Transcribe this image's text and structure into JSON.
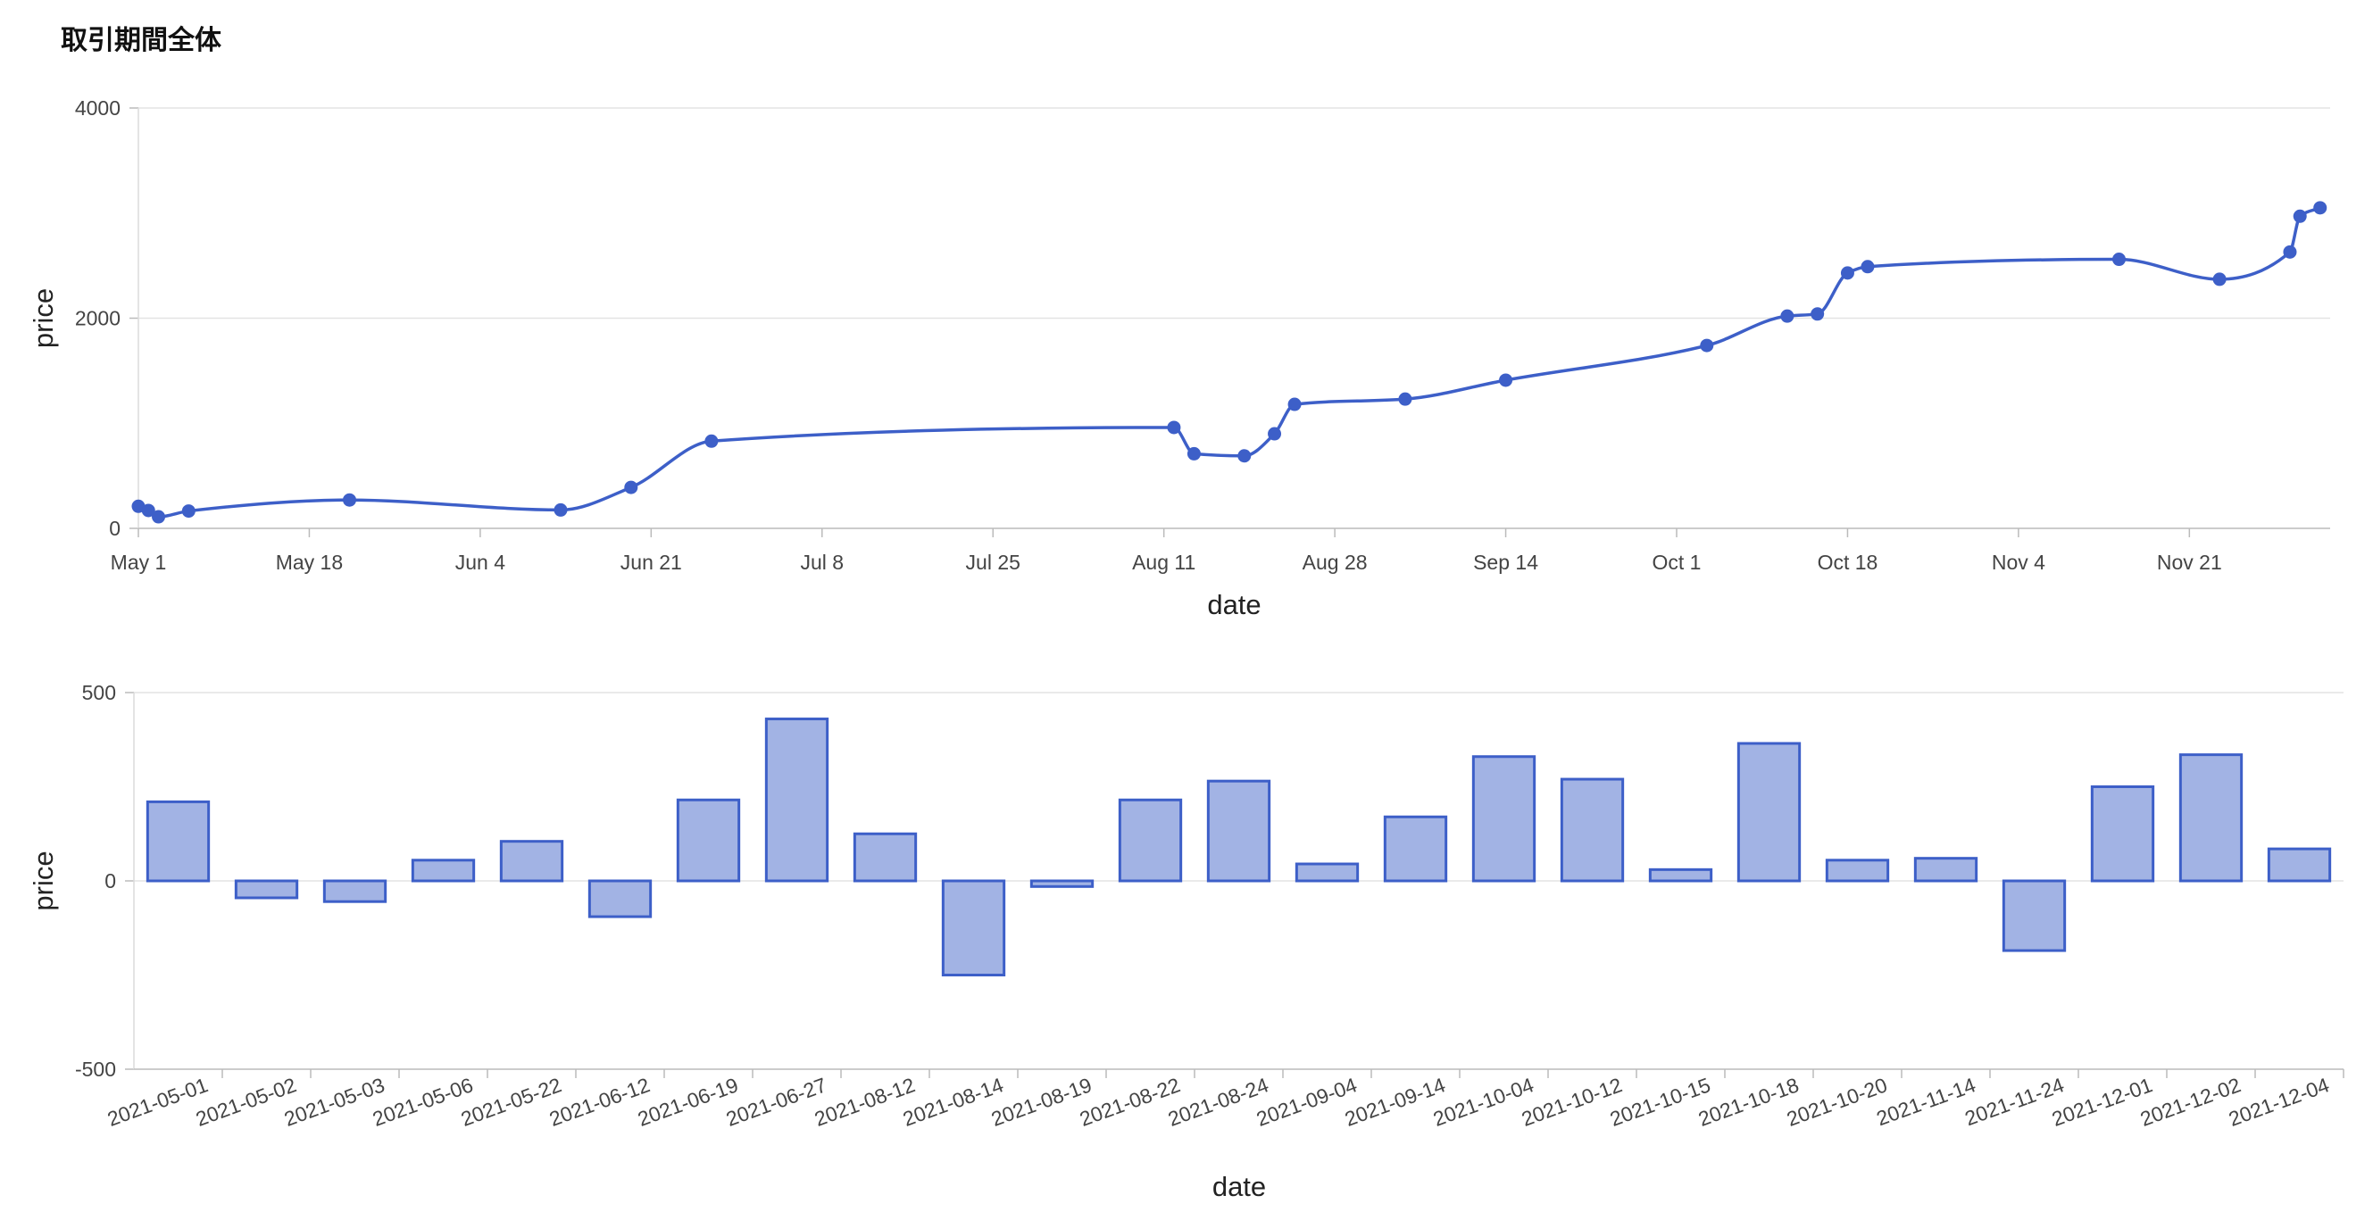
{
  "page": {
    "title": "取引期間全体"
  },
  "chart_data": [
    {
      "type": "line",
      "xlabel": "date",
      "ylabel": "price",
      "ylim": [
        0,
        4000
      ],
      "yticks": [
        0,
        2000,
        4000
      ],
      "xlim": [
        "2021-05-01",
        "2021-12-05"
      ],
      "xticks": [
        {
          "label": "May 1",
          "date": "2021-05-01"
        },
        {
          "label": "May 18",
          "date": "2021-05-18"
        },
        {
          "label": "Jun 4",
          "date": "2021-06-04"
        },
        {
          "label": "Jun 21",
          "date": "2021-06-21"
        },
        {
          "label": "Jul 8",
          "date": "2021-07-08"
        },
        {
          "label": "Jul 25",
          "date": "2021-07-25"
        },
        {
          "label": "Aug 11",
          "date": "2021-08-11"
        },
        {
          "label": "Aug 28",
          "date": "2021-08-28"
        },
        {
          "label": "Sep 14",
          "date": "2021-09-14"
        },
        {
          "label": "Oct 1",
          "date": "2021-10-01"
        },
        {
          "label": "Oct 18",
          "date": "2021-10-18"
        },
        {
          "label": "Nov 4",
          "date": "2021-11-04"
        },
        {
          "label": "Nov 21",
          "date": "2021-11-21"
        }
      ],
      "grid": true,
      "color": "#3d5fc8",
      "points": [
        {
          "x": "2021-05-01",
          "y": 210
        },
        {
          "x": "2021-05-02",
          "y": 170
        },
        {
          "x": "2021-05-03",
          "y": 110
        },
        {
          "x": "2021-05-06",
          "y": 165
        },
        {
          "x": "2021-05-22",
          "y": 270
        },
        {
          "x": "2021-06-12",
          "y": 175
        },
        {
          "x": "2021-06-19",
          "y": 390
        },
        {
          "x": "2021-06-27",
          "y": 830
        },
        {
          "x": "2021-08-12",
          "y": 960
        },
        {
          "x": "2021-08-14",
          "y": 710
        },
        {
          "x": "2021-08-19",
          "y": 690
        },
        {
          "x": "2021-08-22",
          "y": 900
        },
        {
          "x": "2021-08-24",
          "y": 1180
        },
        {
          "x": "2021-09-04",
          "y": 1230
        },
        {
          "x": "2021-09-14",
          "y": 1410
        },
        {
          "x": "2021-10-04",
          "y": 1740
        },
        {
          "x": "2021-10-12",
          "y": 2020
        },
        {
          "x": "2021-10-15",
          "y": 2040
        },
        {
          "x": "2021-10-18",
          "y": 2430
        },
        {
          "x": "2021-10-20",
          "y": 2490
        },
        {
          "x": "2021-11-14",
          "y": 2560
        },
        {
          "x": "2021-11-24",
          "y": 2370
        },
        {
          "x": "2021-12-01",
          "y": 2630
        },
        {
          "x": "2021-12-02",
          "y": 2970
        },
        {
          "x": "2021-12-04",
          "y": 3050
        }
      ]
    },
    {
      "type": "bar",
      "xlabel": "date",
      "ylabel": "price",
      "ylim": [
        -500,
        500
      ],
      "yticks": [
        -500,
        0,
        500
      ],
      "grid": true,
      "fill": "#a2b3e4",
      "stroke": "#3d5fc8",
      "categories": [
        "2021-05-01",
        "2021-05-02",
        "2021-05-03",
        "2021-05-06",
        "2021-05-22",
        "2021-06-12",
        "2021-06-19",
        "2021-06-27",
        "2021-08-12",
        "2021-08-14",
        "2021-08-19",
        "2021-08-22",
        "2021-08-24",
        "2021-09-04",
        "2021-09-14",
        "2021-10-04",
        "2021-10-12",
        "2021-10-15",
        "2021-10-18",
        "2021-10-20",
        "2021-11-14",
        "2021-11-24",
        "2021-12-01",
        "2021-12-02",
        "2021-12-04"
      ],
      "values": [
        210,
        -45,
        -55,
        55,
        105,
        -95,
        215,
        430,
        125,
        -250,
        -15,
        215,
        265,
        45,
        170,
        330,
        270,
        30,
        365,
        55,
        60,
        -185,
        250,
        335,
        85
      ]
    }
  ]
}
